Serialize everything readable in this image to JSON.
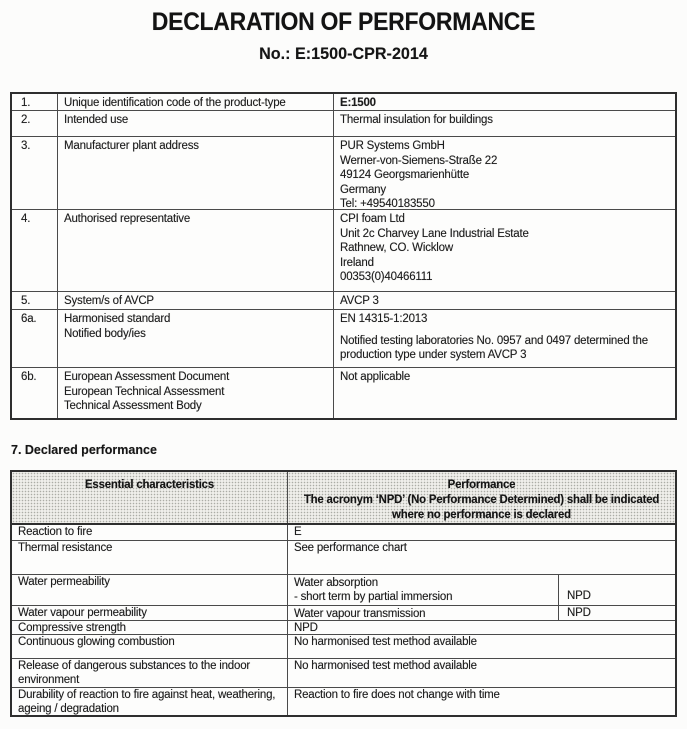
{
  "header": {
    "title": "DECLARATION OF PERFORMANCE",
    "doc_number": "No.: E:1500-CPR-2014"
  },
  "table1": {
    "rows": [
      {
        "num": "1.",
        "label": "Unique identification code of the product-type",
        "value": "E:1500"
      },
      {
        "num": "2.",
        "label": "Intended use",
        "value": "Thermal insulation for buildings"
      },
      {
        "num": "3.",
        "label": "Manufacturer plant address",
        "value_lines": [
          "PUR Systems GmbH",
          "Werner-von-Siemens-Straße 22",
          "49124 Georgsmarienhütte",
          "Germany",
          "Tel: +49540183550"
        ]
      },
      {
        "num": "4.",
        "label": "Authorised representative",
        "value_lines": [
          "CPI foam Ltd",
          "Unit 2c Charvey Lane Industrial Estate",
          "Rathnew, CO. Wicklow",
          "Ireland",
          "00353(0)40466111"
        ]
      },
      {
        "num": "5.",
        "label": "System/s of AVCP",
        "value": "AVCP 3"
      },
      {
        "num": "6a.",
        "label_lines": [
          "Harmonised standard",
          "Notified body/ies"
        ],
        "value_paragraphs": [
          "EN 14315-1:2013",
          "Notified testing laboratories No. 0957 and 0497 determined the production type under system AVCP 3"
        ]
      },
      {
        "num": "6b.",
        "label_lines": [
          "European Assessment Document",
          "European Technical Assessment",
          "Technical Assessment Body"
        ],
        "value": "Not applicable"
      }
    ]
  },
  "section7": {
    "heading": "7. Declared performance"
  },
  "table2": {
    "header": {
      "col1": "Essential characteristics",
      "col2_lines": [
        "Performance",
        "The acronym ‘NPD’ (No Performance Determined) shall be indicated",
        "where no performance is declared"
      ]
    },
    "rows": [
      {
        "label": "Reaction to fire",
        "value": "E"
      },
      {
        "label": "Thermal resistance",
        "value": "See performance chart"
      },
      {
        "label": "Water permeability",
        "desc_lines": [
          "Water absorption",
          "- short term by partial immersion"
        ],
        "npd": "NPD"
      },
      {
        "label": "Water vapour permeability",
        "desc": "Water vapour transmission",
        "npd": "NPD"
      },
      {
        "label": "Compressive strength",
        "value": "NPD"
      },
      {
        "label": "Continuous glowing combustion",
        "value": "No harmonised test method available"
      },
      {
        "label": "Release of dangerous substances to the indoor environment",
        "value": "No harmonised test method available"
      },
      {
        "label": "Durability of reaction to fire against heat, weathering, ageing / degradation",
        "value": "Reaction to fire does not change with time"
      }
    ]
  }
}
